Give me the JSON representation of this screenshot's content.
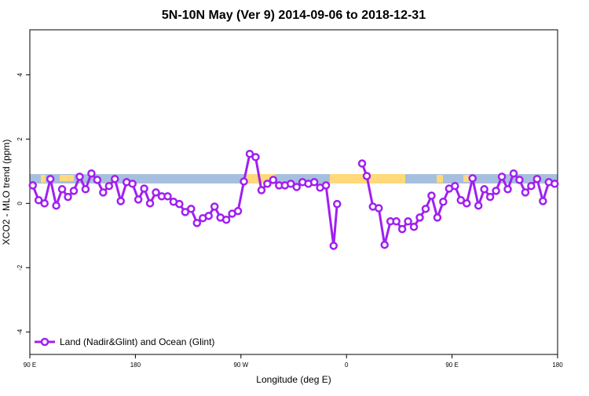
{
  "chart_data": {
    "type": "line",
    "title": "5N-10N May (Ver 9)   2014-09-06 to 2018-12-31",
    "x_label": "Longitude (deg E)",
    "y_label": "XCO2 - MLO trend (ppm)",
    "xlim": [
      90,
      540
    ],
    "ylim": [
      -4.7,
      5.4
    ],
    "xticks": [
      {
        "value": 90,
        "label": "90 E"
      },
      180,
      {
        "value": 270,
        "label": "90 W"
      },
      {
        "value": 360,
        "label": "0"
      },
      {
        "value": 450,
        "label": "90 E"
      },
      {
        "value": 540,
        "label": "180"
      }
    ],
    "yticks": [
      -4,
      -2,
      0,
      2,
      4
    ],
    "legend": "bottom-left",
    "x": [
      92.5,
      97.5,
      102.5,
      107.5,
      112.5,
      117.5,
      122.5,
      127.5,
      132.5,
      137.5,
      142.5,
      147.5,
      152.5,
      157.5,
      162.5,
      167.5,
      172.5,
      177.5,
      182.5,
      187.5,
      192.5,
      197.5,
      202.5,
      207.5,
      212.5,
      217.5,
      222.5,
      227.5,
      232.5,
      237.5,
      242.5,
      247.5,
      252.5,
      257.5,
      262.5,
      267.5,
      272.5,
      277.5,
      282.5,
      287.5,
      292.5,
      297.5,
      302.5,
      307.5,
      312.5,
      317.5,
      322.5,
      327.5,
      332.5,
      337.5,
      342.5,
      349,
      352,
      362.5,
      373.3,
      377.3,
      382.5,
      387.5,
      392.5,
      397.5,
      402.5,
      407.5,
      412.5,
      417.5,
      422.5,
      427.5,
      432.5,
      437.5,
      442.5,
      447.5,
      452.5,
      457.5,
      462.5,
      467.5,
      472.5,
      477.5,
      482.5,
      487.5,
      492.5,
      497.5,
      502.5,
      507.5,
      512.5,
      517.5,
      522.5,
      527.5,
      532.5,
      537.5
    ],
    "series": [
      {
        "name": "Land (Nadir&Glint) and Ocean (Glint)",
        "color": "#a020f0",
        "values": [
          0.56,
          0.1,
          0.0,
          0.76,
          -0.07,
          0.44,
          0.2,
          0.39,
          0.83,
          0.44,
          0.93,
          0.73,
          0.34,
          0.54,
          0.76,
          0.07,
          0.66,
          0.61,
          0.12,
          0.46,
          0.0,
          0.34,
          0.22,
          0.22,
          0.05,
          -0.02,
          -0.27,
          -0.17,
          -0.61,
          -0.46,
          -0.39,
          -0.1,
          -0.44,
          -0.51,
          -0.32,
          -0.24,
          0.68,
          1.54,
          1.44,
          0.41,
          0.61,
          0.73,
          0.56,
          0.56,
          0.61,
          0.51,
          0.66,
          0.61,
          0.66,
          0.49,
          0.56,
          -1.32,
          -0.02,
          null,
          1.24,
          0.85,
          -0.1,
          -0.15,
          -1.29,
          -0.56,
          -0.56,
          -0.8,
          -0.56,
          -0.73,
          -0.44,
          -0.17,
          0.24,
          -0.44,
          0.05,
          0.46,
          0.54,
          0.1,
          0.0,
          0.78,
          -0.07,
          0.44,
          0.2,
          0.39,
          0.83,
          0.44,
          0.93,
          0.73,
          0.34,
          0.54,
          0.76,
          0.07,
          0.66,
          0.61
        ]
      }
    ]
  }
}
